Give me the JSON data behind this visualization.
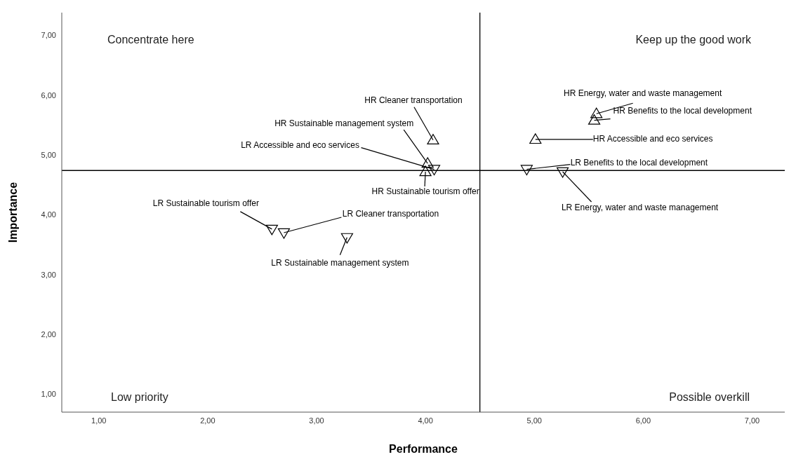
{
  "chart_data": {
    "type": "scatter",
    "xlabel": "Performance",
    "ylabel": "Importance",
    "xlim": [
      0.66,
      7.3
    ],
    "ylim": [
      0.7,
      7.38
    ],
    "xticks": [
      {
        "value": 1,
        "label": "1,00"
      },
      {
        "value": 2,
        "label": "2,00"
      },
      {
        "value": 3,
        "label": "3,00"
      },
      {
        "value": 4,
        "label": "4,00"
      },
      {
        "value": 5,
        "label": "5,00"
      },
      {
        "value": 6,
        "label": "6,00"
      },
      {
        "value": 7,
        "label": "7,00"
      }
    ],
    "yticks": [
      {
        "value": 1,
        "label": "1,00"
      },
      {
        "value": 2,
        "label": "2,00"
      },
      {
        "value": 3,
        "label": "3,00"
      },
      {
        "value": 4,
        "label": "4,00"
      },
      {
        "value": 5,
        "label": "5,00"
      },
      {
        "value": 6,
        "label": "6,00"
      },
      {
        "value": 7,
        "label": "7,00"
      }
    ],
    "grid": false,
    "legend": false,
    "series": [
      {
        "color": "#000000",
        "marker": "triangle",
        "x": [
          4.07,
          4.02,
          4.0,
          5.57,
          5.55,
          5.01
        ],
        "values": [
          5.25,
          4.86,
          4.72,
          5.69,
          5.58,
          5.26
        ]
      },
      {
        "color": "#000000",
        "marker": "triangle-down",
        "x": [
          4.08,
          2.59,
          2.7,
          3.28,
          4.93,
          5.26
        ],
        "values": [
          4.76,
          3.76,
          3.7,
          3.62,
          4.76,
          4.72
        ]
      }
    ],
    "ref_lines": [
      {
        "axis": "x",
        "value": 4.5,
        "color": "#000000"
      },
      {
        "axis": "y",
        "value": 4.74,
        "color": "#000000"
      }
    ],
    "annotations": [
      "Concentrate here",
      "Keep up the good work",
      "Low priority",
      "Possible overkill",
      {
        "text": "HR Cleaner transportation",
        "x": 4.07,
        "y": 5.25
      },
      {
        "text": "HR Sustainable management system",
        "x": 4.02,
        "y": 4.86
      },
      {
        "text": "LR Accessible and eco services",
        "x": 4.08,
        "y": 4.76
      },
      {
        "text": "HR Sustainable tourism offer",
        "x": 4.0,
        "y": 4.72
      },
      {
        "text": "LR Sustainable tourism offer",
        "x": 2.59,
        "y": 3.76
      },
      {
        "text": "LR Cleaner transportation",
        "x": 2.7,
        "y": 3.7
      },
      {
        "text": "LR Sustainable management system",
        "x": 3.28,
        "y": 3.62
      },
      {
        "text": "HR Energy, water and waste management",
        "x": 5.57,
        "y": 5.69
      },
      {
        "text": "HR Benefits to the local development",
        "x": 5.55,
        "y": 5.58
      },
      {
        "text": "HR Accessible and eco services",
        "x": 5.01,
        "y": 5.26
      },
      {
        "text": "LR Benefits to the local development",
        "x": 4.93,
        "y": 4.76
      },
      {
        "text": "LR Energy, water and waste management",
        "x": 5.26,
        "y": 4.72
      }
    ]
  }
}
